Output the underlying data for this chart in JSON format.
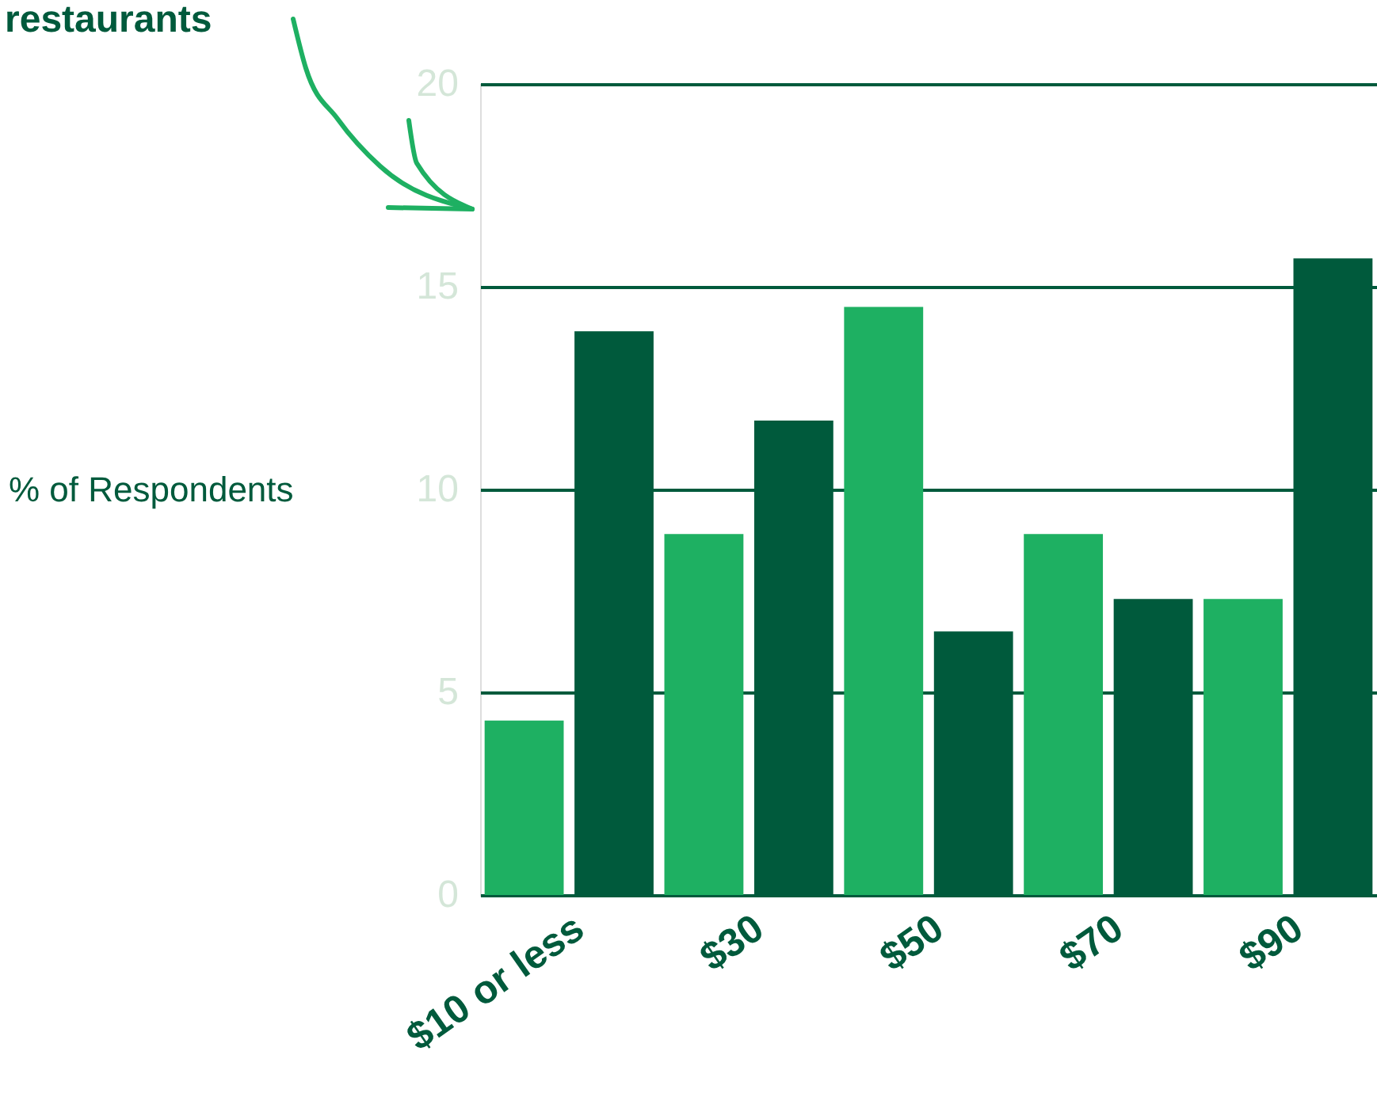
{
  "chart_data": {
    "type": "bar",
    "ylabel": "% of Respondents",
    "annotations": [
      "restaurants"
    ],
    "categories": [
      "$10 or less",
      null,
      "$30",
      null,
      "$50",
      null,
      "$70",
      null,
      "$90",
      null
    ],
    "values": [
      4.3,
      13.9,
      8.9,
      11.7,
      14.5,
      6.5,
      8.9,
      7.3,
      7.3,
      15.7
    ],
    "colors": [
      "#1eb062",
      "#005a3c",
      "#1eb062",
      "#005a3c",
      "#1eb062",
      "#005a3c",
      "#1eb062",
      "#005a3c",
      "#1eb062",
      "#005a3c"
    ],
    "ylim": [
      0,
      20
    ],
    "yticks": [
      0,
      5,
      10,
      15,
      20
    ],
    "grid": "y"
  }
}
